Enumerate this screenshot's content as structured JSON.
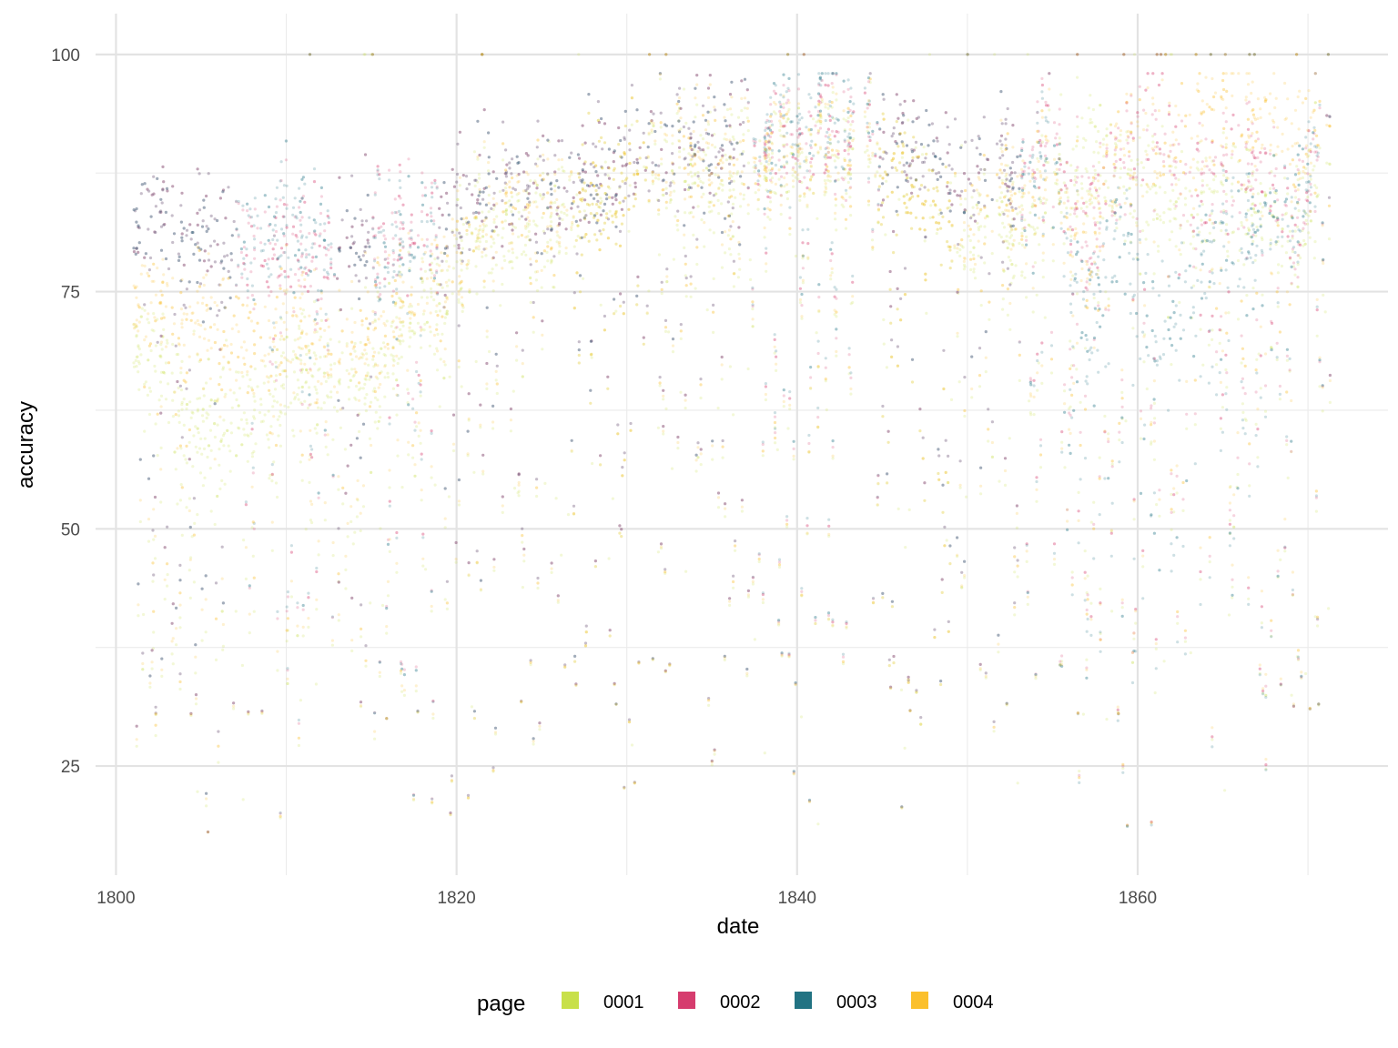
{
  "chart_data": {
    "type": "scatter",
    "xlabel": "date",
    "ylabel": "accuracy",
    "xlim": [
      1798.8,
      1874.7
    ],
    "ylim": [
      13.5,
      104.3
    ],
    "x_ticks": [
      1800,
      1820,
      1840,
      1860
    ],
    "x_tick_labels": [
      "1800",
      "1820",
      "1840",
      "1860"
    ],
    "x_minor_ticks": [
      1810,
      1830,
      1850,
      1870
    ],
    "y_ticks": [
      25,
      50,
      75,
      100
    ],
    "y_tick_labels": [
      "25",
      "50",
      "75",
      "100"
    ],
    "y_minor_ticks": [
      37.5,
      62.5,
      87.5
    ],
    "grid": true,
    "legend": {
      "title": "page",
      "position": "bottom"
    },
    "point_opacity": 0.22,
    "series": [
      {
        "name": "0001",
        "color": "#c8e04a",
        "trend": [
          [
            1801,
            72
          ],
          [
            1803,
            66
          ],
          [
            1805,
            60
          ],
          [
            1807,
            62
          ],
          [
            1809,
            64
          ],
          [
            1811,
            68
          ],
          [
            1813,
            66
          ],
          [
            1815,
            66
          ],
          [
            1817,
            72
          ],
          [
            1819,
            74
          ],
          [
            1821,
            82
          ],
          [
            1823,
            82
          ],
          [
            1825,
            82
          ],
          [
            1827,
            84
          ],
          [
            1829,
            86
          ],
          [
            1831,
            88
          ],
          [
            1833,
            88
          ],
          [
            1835,
            86
          ],
          [
            1837,
            88
          ],
          [
            1839,
            89
          ],
          [
            1841,
            90
          ],
          [
            1843,
            89
          ],
          [
            1845,
            90
          ],
          [
            1847,
            86
          ],
          [
            1849,
            82
          ],
          [
            1851,
            82
          ],
          [
            1853,
            82
          ],
          [
            1855,
            86
          ],
          [
            1857,
            88
          ],
          [
            1859,
            88
          ],
          [
            1861,
            86
          ],
          [
            1863,
            84
          ],
          [
            1865,
            86
          ],
          [
            1867,
            84
          ],
          [
            1869,
            82
          ],
          [
            1871,
            88
          ]
        ]
      },
      {
        "name": "0002",
        "color": "#d63c6e",
        "trend": [
          [
            1801,
            84
          ],
          [
            1803,
            82
          ],
          [
            1805,
            80
          ],
          [
            1807,
            80
          ],
          [
            1809,
            80
          ],
          [
            1811,
            80
          ],
          [
            1813,
            80
          ],
          [
            1815,
            80
          ],
          [
            1817,
            82
          ],
          [
            1819,
            82
          ],
          [
            1821,
            86
          ],
          [
            1823,
            86
          ],
          [
            1825,
            86
          ],
          [
            1827,
            86
          ],
          [
            1829,
            88
          ],
          [
            1831,
            89
          ],
          [
            1833,
            90
          ],
          [
            1835,
            90
          ],
          [
            1837,
            91
          ],
          [
            1839,
            91
          ],
          [
            1841,
            92
          ],
          [
            1843,
            92
          ],
          [
            1845,
            92
          ],
          [
            1847,
            90
          ],
          [
            1849,
            88
          ],
          [
            1851,
            88
          ],
          [
            1853,
            88
          ],
          [
            1855,
            92
          ],
          [
            1857,
            80
          ],
          [
            1859,
            90
          ],
          [
            1861,
            94
          ],
          [
            1863,
            86
          ],
          [
            1865,
            88
          ],
          [
            1867,
            90
          ],
          [
            1869,
            82
          ],
          [
            1871,
            93
          ]
        ]
      },
      {
        "name": "0003",
        "color": "#227383",
        "trend": [
          [
            1801,
            84
          ],
          [
            1803,
            82
          ],
          [
            1805,
            80
          ],
          [
            1807,
            80
          ],
          [
            1809,
            82
          ],
          [
            1811,
            82
          ],
          [
            1813,
            80
          ],
          [
            1815,
            80
          ],
          [
            1817,
            80
          ],
          [
            1819,
            82
          ],
          [
            1821,
            86
          ],
          [
            1823,
            86
          ],
          [
            1825,
            86
          ],
          [
            1827,
            86
          ],
          [
            1829,
            88
          ],
          [
            1831,
            89
          ],
          [
            1833,
            90
          ],
          [
            1835,
            90
          ],
          [
            1837,
            91
          ],
          [
            1839,
            92
          ],
          [
            1841,
            94
          ],
          [
            1843,
            93
          ],
          [
            1845,
            92
          ],
          [
            1847,
            90
          ],
          [
            1849,
            88
          ],
          [
            1851,
            88
          ],
          [
            1853,
            88
          ],
          [
            1855,
            90
          ],
          [
            1857,
            70
          ],
          [
            1859,
            84
          ],
          [
            1861,
            70
          ],
          [
            1863,
            76
          ],
          [
            1865,
            82
          ],
          [
            1867,
            82
          ],
          [
            1869,
            84
          ],
          [
            1871,
            93
          ]
        ]
      },
      {
        "name": "0004",
        "color": "#fbc02d",
        "trend": [
          [
            1801,
            76
          ],
          [
            1803,
            72
          ],
          [
            1805,
            72
          ],
          [
            1807,
            70
          ],
          [
            1809,
            70
          ],
          [
            1811,
            72
          ],
          [
            1813,
            68
          ],
          [
            1815,
            70
          ],
          [
            1817,
            74
          ],
          [
            1819,
            76
          ],
          [
            1821,
            82
          ],
          [
            1823,
            84
          ],
          [
            1825,
            84
          ],
          [
            1827,
            84
          ],
          [
            1829,
            86
          ],
          [
            1831,
            88
          ],
          [
            1833,
            89
          ],
          [
            1835,
            89
          ],
          [
            1837,
            89
          ],
          [
            1839,
            90
          ],
          [
            1841,
            90
          ],
          [
            1843,
            90
          ],
          [
            1845,
            90
          ],
          [
            1847,
            86
          ],
          [
            1849,
            82
          ],
          [
            1851,
            84
          ],
          [
            1853,
            86
          ],
          [
            1855,
            88
          ],
          [
            1857,
            78
          ],
          [
            1859,
            92
          ],
          [
            1861,
            90
          ],
          [
            1863,
            92
          ],
          [
            1865,
            95
          ],
          [
            1867,
            94
          ],
          [
            1869,
            92
          ],
          [
            1871,
            92
          ]
        ]
      }
    ]
  }
}
